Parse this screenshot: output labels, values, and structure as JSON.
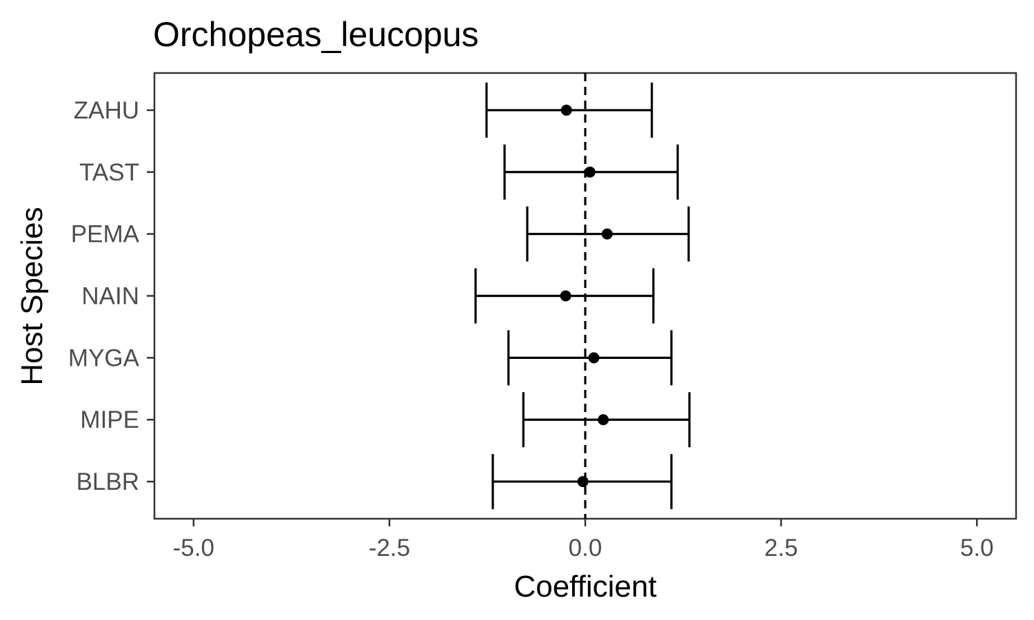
{
  "chart_data": {
    "type": "errorbar",
    "title": "Orchopeas_leucopus",
    "xlabel": "Coefficient",
    "ylabel": "Host Species",
    "xlim": [
      -5.5,
      5.5
    ],
    "x_ticks": [
      -5.0,
      -2.5,
      0.0,
      2.5,
      5.0
    ],
    "x_tick_labels": [
      "-5.0",
      "-2.5",
      "0.0",
      "2.5",
      "5.0"
    ],
    "reference_line": 0.0,
    "grid": false,
    "categories": [
      "ZAHU",
      "TAST",
      "PEMA",
      "NAIN",
      "MYGA",
      "MIPE",
      "BLBR"
    ],
    "estimates": [
      -0.24,
      0.06,
      0.28,
      -0.25,
      0.11,
      0.23,
      -0.03
    ],
    "lower": [
      -1.26,
      -1.03,
      -0.74,
      -1.4,
      -0.98,
      -0.79,
      -1.18
    ],
    "upper": [
      0.85,
      1.18,
      1.32,
      0.87,
      1.1,
      1.33,
      1.1
    ]
  }
}
